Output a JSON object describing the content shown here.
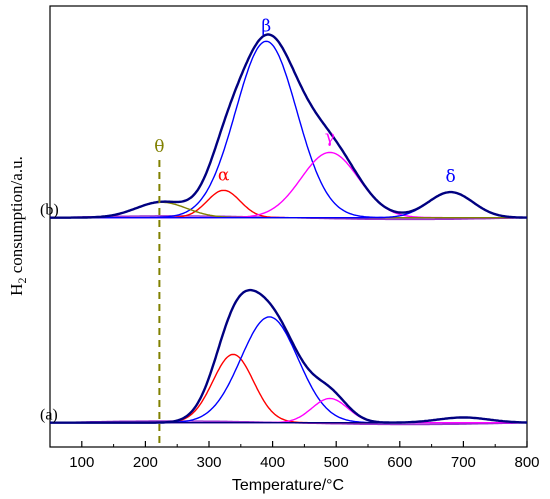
{
  "chart_data": {
    "type": "line",
    "xlabel": "Temperature/°C",
    "ylabel": {
      "main": "H",
      "sub": "2",
      "rest": " consumption/a.u."
    },
    "xlim": [
      50,
      800
    ],
    "xticks": [
      100,
      200,
      300,
      400,
      500,
      600,
      700,
      800
    ],
    "xtick_labels": [
      "100",
      "200",
      "300",
      "400",
      "500",
      "600",
      "700",
      "800"
    ],
    "ylim": [
      0,
      1
    ],
    "grid": false,
    "legend": "none",
    "marker_line": {
      "x": 222,
      "label": "θ",
      "color": "#808000",
      "style": "dashed"
    },
    "traces": [
      {
        "label": "(b)",
        "offset": 0.52,
        "components": [
          {
            "label": "α",
            "color": "#ff0000",
            "center": 323,
            "height": 0.062,
            "width": 26
          },
          {
            "label": "β",
            "color": "#0000ff",
            "center": 390,
            "height": 0.4,
            "width": 48
          },
          {
            "label": "γ",
            "color": "#ff00ff",
            "center": 490,
            "height": 0.148,
            "width": 45
          },
          {
            "label": "",
            "color": "#808000",
            "center": 225,
            "height": 0.035,
            "width": 40
          },
          {
            "label": "δ",
            "color": "#0000ff",
            "center": 680,
            "height": 0.058,
            "width": 35
          }
        ],
        "total_color": "#000080"
      },
      {
        "label": "(a)",
        "offset": 0.055,
        "components": [
          {
            "label": "",
            "color": "#ff0000",
            "center": 338,
            "height": 0.155,
            "width": 32
          },
          {
            "label": "",
            "color": "#0000ff",
            "center": 395,
            "height": 0.24,
            "width": 45
          },
          {
            "label": "",
            "color": "#ff00ff",
            "center": 490,
            "height": 0.055,
            "width": 28
          },
          {
            "label": "",
            "color": "#000080",
            "center": 700,
            "height": 0.012,
            "width": 40
          }
        ],
        "total_color": "#000080"
      }
    ],
    "baseline_color": "#9933cc"
  }
}
